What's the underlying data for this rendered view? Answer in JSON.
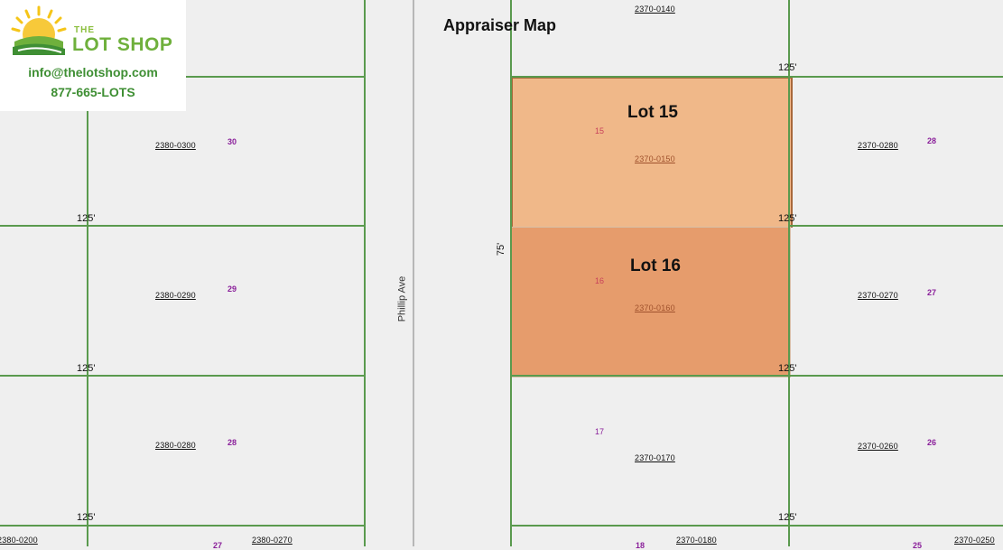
{
  "title": "Appraiser Map",
  "logo": {
    "the": "THE",
    "name": "LOT SHOP",
    "email": "info@thelotshop.com",
    "phone": "877-665-LOTS",
    "colors": {
      "green": "#6fb03c",
      "dark_green": "#3f8f34",
      "sun": "#f5c518"
    }
  },
  "street": "Phillip Ave",
  "lots": {
    "lot15": {
      "label": "Lot 15",
      "number": "15",
      "parcel": "2370-0150",
      "color": "#f0b889"
    },
    "lot16": {
      "label": "Lot 16",
      "number": "16",
      "parcel": "2370-0160",
      "color": "#e69c6c"
    }
  },
  "parcels": {
    "p2370_0140": "2370-0140",
    "p2370_0170": "2370-0170",
    "p2370_0180": "2370-0180",
    "p2370_0250": "2370-0250",
    "p2370_0260": "2370-0260",
    "p2370_0270": "2370-0270",
    "p2370_0280": "2370-0280",
    "p2380_0200": "2380-0200",
    "p2380_0270": "2380-0270",
    "p2380_0280": "2380-0280",
    "p2380_0290": "2380-0290",
    "p2380_0300": "2380-0300"
  },
  "lot_numbers": {
    "n30": "30",
    "n29": "29",
    "n28_left": "28",
    "n27_left": "27",
    "n28_right": "28",
    "n27_right": "27",
    "n26_right": "26",
    "n25_right": "25",
    "n17": "17",
    "n18": "18"
  },
  "dimensions": {
    "d125": "125'",
    "d75": "75'"
  }
}
